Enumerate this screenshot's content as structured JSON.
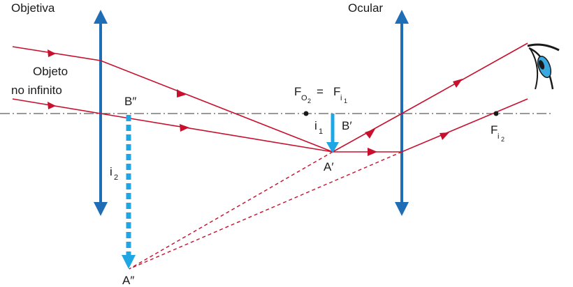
{
  "labels": {
    "objective": "Objetiva",
    "eyepiece": "Ocular",
    "object_line1": "Objeto",
    "object_line2": "no infinito",
    "focus_left": "F",
    "focus_left_sub": "O",
    "focus_left_subsub": "2",
    "equals": "=",
    "focus_right": "F",
    "focus_right_sub": "i",
    "focus_right_subsub": "1",
    "image1": "i",
    "image1_sub": "1",
    "point_b1": "B′",
    "point_a1": "A′",
    "image2": "i",
    "image2_sub": "2",
    "point_b2": "B″",
    "point_a2": "A″",
    "focus_eye": "F",
    "focus_eye_sub": "i",
    "focus_eye_subsub": "2"
  },
  "icons": {
    "eye": "eye-icon"
  },
  "colors": {
    "lens": "#1f6db5",
    "ray": "#c8102e",
    "image": "#1ea7e4",
    "axis": "#333333",
    "eye_iris": "#39a9e0"
  }
}
